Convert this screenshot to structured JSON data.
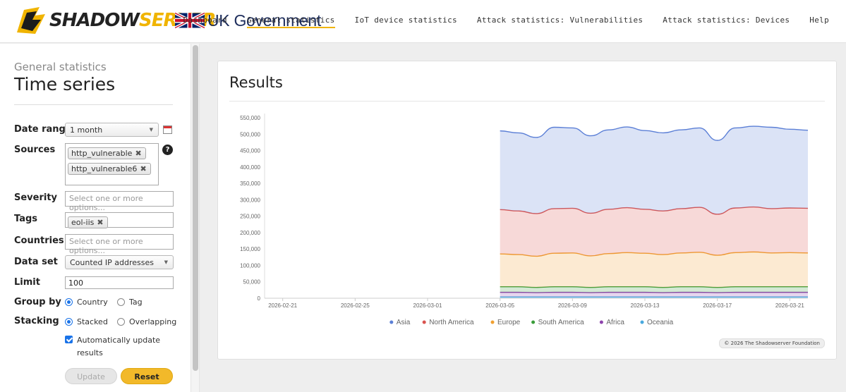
{
  "header": {
    "brand_main": "SHADOWSERVER",
    "partner": "UK Government",
    "nav": [
      {
        "label": "Dashboard",
        "active": false
      },
      {
        "label": "General statistics",
        "active": true
      },
      {
        "label": "IoT device statistics",
        "active": false
      },
      {
        "label": "Attack statistics: Vulnerabilities",
        "active": false
      },
      {
        "label": "Attack statistics: Devices",
        "active": false
      },
      {
        "label": "Help",
        "active": false
      }
    ]
  },
  "sidebar": {
    "breadcrumb": "General statistics",
    "title": "Time series",
    "date_range": {
      "label": "Date range",
      "value": "1 month"
    },
    "sources": {
      "label": "Sources",
      "chips": [
        "http_vulnerable",
        "http_vulnerable6"
      ]
    },
    "severity": {
      "label": "Severity",
      "placeholder": "Select one or more options..."
    },
    "tags": {
      "label": "Tags",
      "chips": [
        "eol-iis"
      ]
    },
    "countries": {
      "label": "Countries",
      "placeholder": "Select one or more options..."
    },
    "data_set": {
      "label": "Data set",
      "value": "Counted IP addresses"
    },
    "limit": {
      "label": "Limit",
      "value": "100"
    },
    "group_by": {
      "label": "Group by",
      "options": [
        "Country",
        "Tag"
      ],
      "selected": "Country"
    },
    "stacking": {
      "label": "Stacking",
      "options": [
        "Stacked",
        "Overlapping"
      ],
      "selected": "Stacked"
    },
    "auto_update": {
      "label": "Automatically update results",
      "checked": true
    },
    "buttons": {
      "update": "Update",
      "reset": "Reset"
    }
  },
  "results": {
    "title": "Results",
    "credit": "© 2026 The Shadowserver Foundation"
  },
  "chart_data": {
    "type": "area",
    "stacked": true,
    "title": "",
    "xlabel": "",
    "ylabel": "",
    "ylim": [
      0,
      550000
    ],
    "y_ticks": [
      0,
      50000,
      100000,
      150000,
      200000,
      250000,
      300000,
      350000,
      400000,
      450000,
      500000,
      550000
    ],
    "y_tick_labels": [
      "0",
      "50,000",
      "100,000",
      "150,000",
      "200,000",
      "250,000",
      "300,000",
      "350,000",
      "400,000",
      "450,000",
      "500,000",
      "550,000"
    ],
    "x_tick_labels": [
      "2026-02-21",
      "2026-02-25",
      "2026-03-01",
      "2026-03-05",
      "2026-03-09",
      "2026-03-13",
      "2026-03-17",
      "2026-03-21"
    ],
    "x_tick_day_index": [
      0,
      4,
      8,
      12,
      16,
      20,
      24,
      28
    ],
    "x_day_range": [
      -1,
      29
    ],
    "x_day_index": [
      12,
      13,
      14,
      15,
      16,
      17,
      18,
      19,
      20,
      21,
      22,
      23,
      24,
      25,
      26,
      27,
      28,
      29
    ],
    "series": [
      {
        "name": "Oceania",
        "color": "#49a9de",
        "values": [
          4000,
          4000,
          4000,
          4000,
          4000,
          4000,
          4000,
          4000,
          4000,
          4000,
          4000,
          4000,
          4000,
          4000,
          4000,
          4000,
          4000,
          4000
        ]
      },
      {
        "name": "Africa",
        "color": "#8e44ad",
        "values": [
          14000,
          14000,
          13000,
          14000,
          14000,
          13000,
          14000,
          14000,
          14000,
          13000,
          14000,
          14000,
          13000,
          14000,
          14000,
          14000,
          14000,
          14000
        ]
      },
      {
        "name": "South America",
        "color": "#3a9d3a",
        "values": [
          17000,
          17000,
          16000,
          17000,
          17000,
          16000,
          17000,
          17000,
          17000,
          16000,
          17000,
          17000,
          16000,
          17000,
          17000,
          17000,
          17000,
          17000
        ]
      },
      {
        "name": "Europe",
        "color": "#f0a030",
        "values": [
          100000,
          98000,
          95000,
          102000,
          103000,
          96000,
          101000,
          104000,
          102000,
          100000,
          103000,
          105000,
          98000,
          104000,
          106000,
          103000,
          104000,
          103000
        ]
      },
      {
        "name": "North America",
        "color": "#d9534f",
        "values": [
          135000,
          133000,
          130000,
          136000,
          136000,
          130000,
          135000,
          137000,
          134000,
          133000,
          135000,
          137000,
          125000,
          136000,
          137000,
          135000,
          136000,
          136000
        ]
      },
      {
        "name": "Asia",
        "color": "#5b7fd6",
        "values": [
          240000,
          238000,
          232000,
          248000,
          245000,
          236000,
          242000,
          246000,
          240000,
          238000,
          240000,
          242000,
          225000,
          244000,
          246000,
          248000,
          240000,
          238000
        ]
      }
    ],
    "legend_order": [
      "Asia",
      "North America",
      "Europe",
      "South America",
      "Africa",
      "Oceania"
    ],
    "legend_position": "bottom"
  }
}
